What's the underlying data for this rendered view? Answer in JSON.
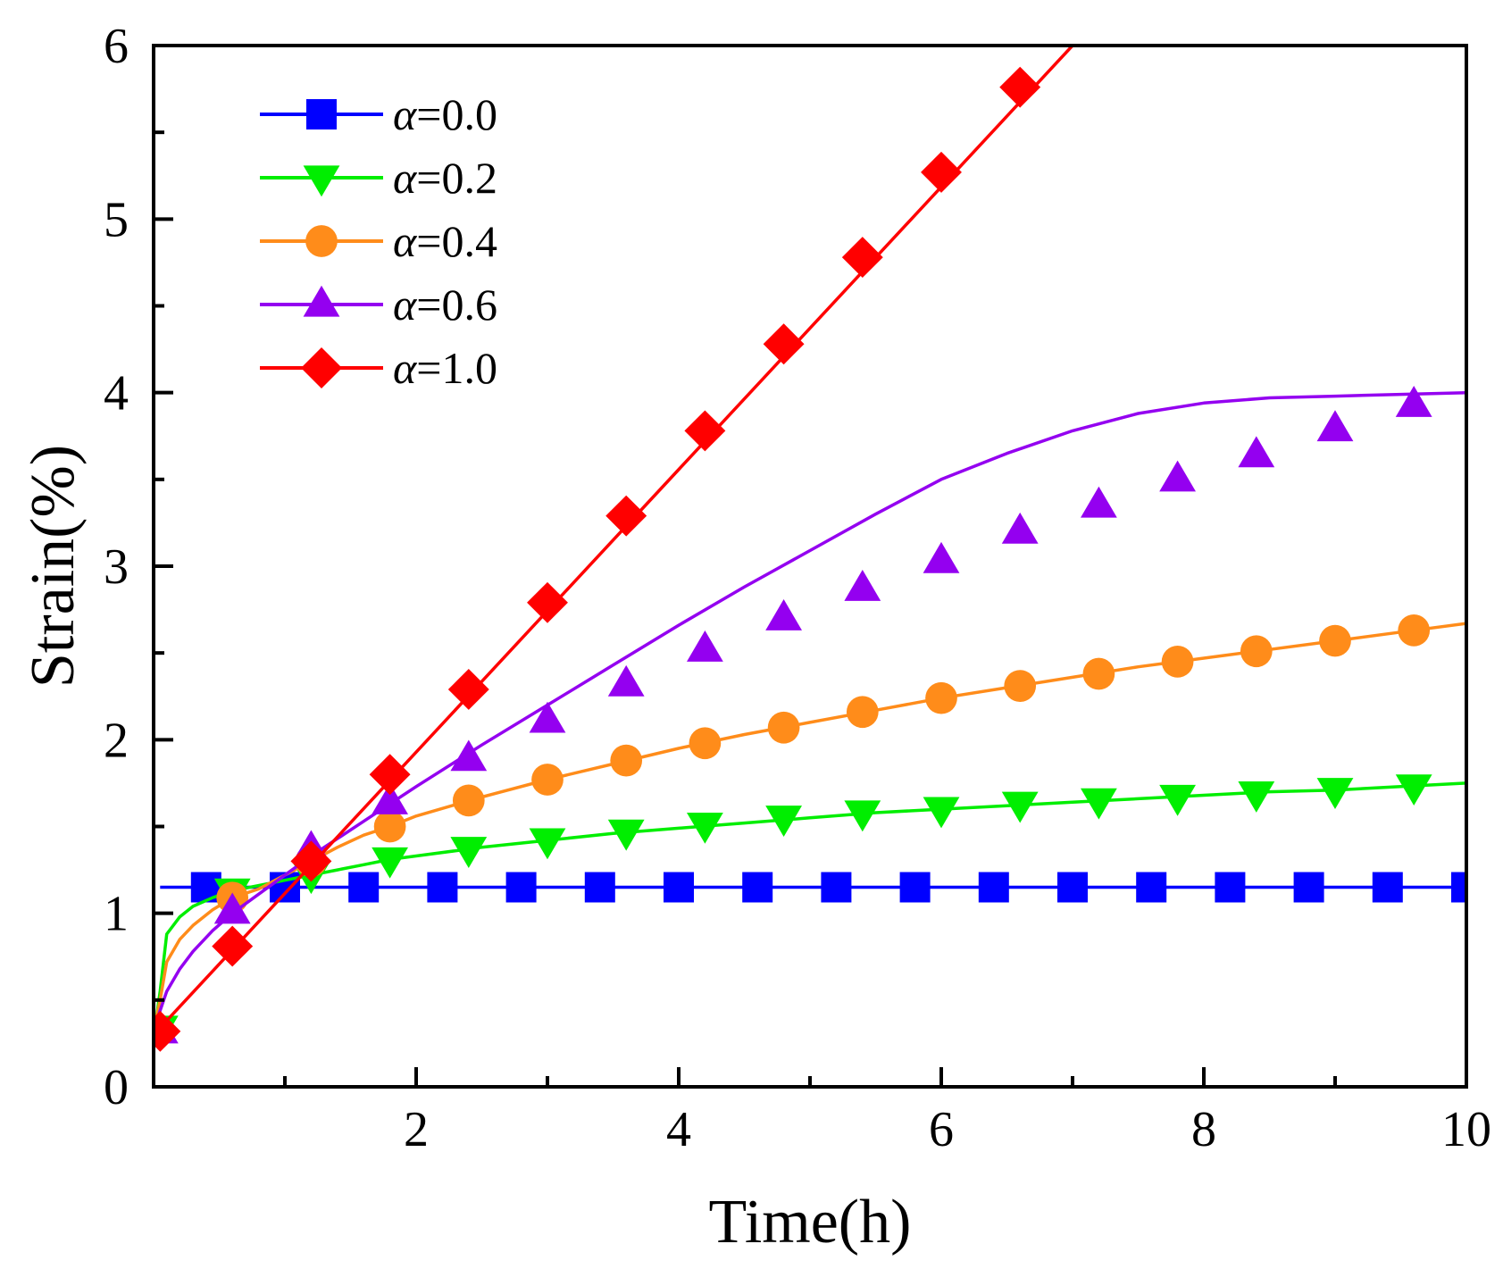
{
  "chart_data": {
    "type": "line",
    "title": "",
    "xlabel": "Time(h)",
    "ylabel": "Strain(%)",
    "xlim": [
      0.0,
      10
    ],
    "ylim": [
      0,
      6
    ],
    "x_ticks": [
      2,
      4,
      6,
      8,
      10
    ],
    "x_tick_labels": [
      "2",
      "4",
      "6",
      "8",
      "10"
    ],
    "y_ticks": [
      0,
      1,
      2,
      3,
      4,
      5,
      6
    ],
    "y_tick_labels": [
      "0",
      "1",
      "2",
      "3",
      "4",
      "5",
      "6"
    ],
    "grid": false,
    "legend_position": "top-left",
    "series": [
      {
        "name": "α=0.0",
        "legend_symbol": "α",
        "legend_value": "=0.0",
        "color": "#0000ff",
        "marker": "square",
        "x": [
          0.05,
          0.4,
          1.0,
          1.6,
          2.2,
          2.8,
          3.4,
          4.0,
          4.6,
          5.2,
          5.8,
          6.4,
          7.0,
          7.6,
          8.2,
          8.8,
          9.4,
          10.0
        ],
        "y": [
          1.15,
          1.15,
          1.15,
          1.15,
          1.15,
          1.15,
          1.15,
          1.15,
          1.15,
          1.15,
          1.15,
          1.15,
          1.15,
          1.15,
          1.15,
          1.15,
          1.15,
          1.15
        ],
        "marker_x": [
          0.4,
          1.0,
          1.6,
          2.2,
          2.8,
          3.4,
          4.0,
          4.6,
          5.2,
          5.8,
          6.4,
          7.0,
          7.6,
          8.2,
          8.8,
          9.4,
          10.0
        ],
        "marker_y": [
          1.15,
          1.15,
          1.15,
          1.15,
          1.15,
          1.15,
          1.15,
          1.15,
          1.15,
          1.15,
          1.15,
          1.15,
          1.15,
          1.15,
          1.15,
          1.15,
          1.15
        ]
      },
      {
        "name": "α=0.2",
        "legend_symbol": "α",
        "legend_value": "=0.2",
        "color": "#00ee00",
        "marker": "triangle-down",
        "x": [
          0.0,
          0.05,
          0.1,
          0.2,
          0.3,
          0.45,
          0.6,
          0.8,
          1.0,
          1.2,
          1.4,
          1.6,
          1.8,
          2.0,
          2.5,
          3.0,
          3.5,
          4.0,
          4.5,
          5.0,
          5.5,
          6.0,
          6.5,
          7.0,
          7.5,
          8.0,
          8.5,
          9.0,
          9.5,
          10.0
        ],
        "y": [
          0.28,
          0.55,
          0.88,
          0.98,
          1.04,
          1.09,
          1.13,
          1.16,
          1.19,
          1.22,
          1.25,
          1.28,
          1.31,
          1.33,
          1.38,
          1.42,
          1.46,
          1.49,
          1.52,
          1.55,
          1.58,
          1.6,
          1.62,
          1.64,
          1.66,
          1.68,
          1.7,
          1.71,
          1.73,
          1.75
        ],
        "marker_x": [
          0.05,
          0.6,
          1.2,
          1.8,
          2.4,
          3.0,
          3.6,
          4.2,
          4.8,
          5.4,
          6.0,
          6.6,
          7.2,
          7.8,
          8.4,
          9.0,
          9.6
        ],
        "marker_y": [
          0.34,
          1.13,
          1.22,
          1.31,
          1.37,
          1.42,
          1.47,
          1.51,
          1.55,
          1.58,
          1.6,
          1.63,
          1.65,
          1.67,
          1.69,
          1.71,
          1.73
        ]
      },
      {
        "name": "α=0.4",
        "legend_symbol": "α",
        "legend_value": "=0.4",
        "color": "#ff8c1a",
        "marker": "circle",
        "x": [
          0.0,
          0.05,
          0.1,
          0.2,
          0.3,
          0.45,
          0.6,
          0.8,
          1.0,
          1.2,
          1.4,
          1.6,
          1.8,
          2.0,
          2.5,
          3.0,
          3.5,
          4.0,
          4.5,
          5.0,
          5.5,
          6.0,
          6.5,
          7.0,
          7.5,
          8.0,
          8.5,
          9.0,
          9.5,
          10.0
        ],
        "y": [
          0.32,
          0.5,
          0.72,
          0.85,
          0.93,
          1.02,
          1.09,
          1.14,
          1.22,
          1.3,
          1.38,
          1.45,
          1.5,
          1.56,
          1.67,
          1.77,
          1.86,
          1.95,
          2.03,
          2.1,
          2.17,
          2.24,
          2.3,
          2.36,
          2.42,
          2.47,
          2.52,
          2.57,
          2.62,
          2.67
        ],
        "marker_x": [
          0.6,
          1.2,
          1.8,
          2.4,
          3.0,
          3.6,
          4.2,
          4.8,
          5.4,
          6.0,
          6.6,
          7.2,
          7.8,
          8.4,
          9.0,
          9.6
        ],
        "marker_y": [
          1.09,
          1.3,
          1.5,
          1.65,
          1.77,
          1.88,
          1.98,
          2.07,
          2.16,
          2.24,
          2.31,
          2.38,
          2.45,
          2.51,
          2.57,
          2.63
        ]
      },
      {
        "name": "α=0.6",
        "legend_symbol": "α",
        "legend_value": "=0.6",
        "color": "#9400f0",
        "marker": "triangle-up",
        "x": [
          0.0,
          0.1,
          0.2,
          0.3,
          0.45,
          0.6,
          0.8,
          1.0,
          1.2,
          1.4,
          1.6,
          1.8,
          2.0,
          2.5,
          3.0,
          3.5,
          4.0,
          4.5,
          5.0,
          5.5,
          6.0,
          6.5,
          7.0,
          7.5,
          8.0,
          8.5,
          9.0,
          9.5,
          10.0
        ],
        "y": [
          0.33,
          0.55,
          0.68,
          0.78,
          0.9,
          1.0,
          1.11,
          1.22,
          1.33,
          1.43,
          1.53,
          1.63,
          1.73,
          1.97,
          2.2,
          2.43,
          2.66,
          2.88,
          3.09,
          3.3,
          3.5,
          3.65,
          3.78,
          3.88,
          3.94,
          3.97,
          3.98,
          3.99,
          4.0
        ],
        "marker_x": [
          0.05,
          0.6,
          1.2,
          1.8,
          2.4,
          3.0,
          3.6,
          4.2,
          4.8,
          5.4,
          6.0,
          6.6,
          7.2,
          7.8,
          8.4,
          9.0,
          9.6
        ],
        "marker_y": [
          0.32,
          1.01,
          1.37,
          1.64,
          1.89,
          2.11,
          2.32,
          2.52,
          2.7,
          2.87,
          3.03,
          3.2,
          3.35,
          3.5,
          3.64,
          3.79,
          3.93
        ]
      },
      {
        "name": "α=1.0",
        "legend_symbol": "α",
        "legend_value": "=1.0",
        "color": "#ff0000",
        "marker": "diamond",
        "x": [
          0.0,
          7.0
        ],
        "y": [
          0.3,
          6.0
        ],
        "marker_x": [
          0.05,
          0.6,
          1.2,
          1.8,
          2.4,
          3.0,
          3.6,
          4.2,
          4.8,
          5.4,
          6.0,
          6.6
        ],
        "marker_y": [
          0.32,
          0.81,
          1.3,
          1.8,
          2.29,
          2.79,
          3.29,
          3.78,
          4.28,
          4.78,
          5.27,
          5.76
        ]
      }
    ]
  }
}
